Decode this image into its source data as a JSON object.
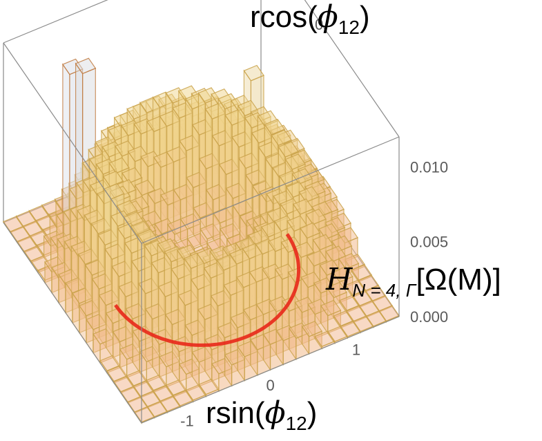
{
  "chart_data": {
    "type": "bar",
    "subtype": "3d-histogram",
    "title": "",
    "xlabel": "rsin(ϕ₁₂)",
    "ylabel": "rcos(ϕ₁₂)",
    "zlabel": "Hₙ₌₄,Γ[Ω(M)]",
    "labels": {
      "x_main": "rsin(",
      "x_phi": "ϕ",
      "x_sub": "12",
      "x_close": ")",
      "y_main": "rcos(",
      "y_phi": "ϕ",
      "y_sub": "12",
      "y_close": ")",
      "z_main": "H",
      "z_sub": "N = 4, Γ",
      "z_arg": "[Ω(M)]"
    },
    "x_ticks": [
      "-1",
      "0",
      "1"
    ],
    "y_ticks": [
      "0",
      "1"
    ],
    "z_ticks": [
      "0.000",
      "0.005",
      "0.010"
    ],
    "zlim": [
      0,
      0.012
    ],
    "xlim": [
      -1.5,
      1.5
    ],
    "ylim": [
      -1.5,
      1.5
    ],
    "grid_n": 20,
    "bin_values_note": "ring-shaped density peaking near r≈1 with isolated tall bins",
    "peaks": [
      {
        "x": -0.95,
        "y": 0.95,
        "z": 0.0115
      },
      {
        "x": -0.85,
        "y": 0.95,
        "z": 0.0112
      },
      {
        "x": 0.95,
        "y": 0.65,
        "z": 0.0078
      },
      {
        "x": -0.95,
        "y": 0.05,
        "z": 0.0072
      }
    ],
    "ring_radius": 1.0,
    "ring_color": "#e8281a",
    "bar_color_low": "#f2b48c",
    "bar_color_mid": "#f0d58c",
    "bar_color_high": "#d8dff0",
    "grid": false,
    "legend": "none"
  }
}
